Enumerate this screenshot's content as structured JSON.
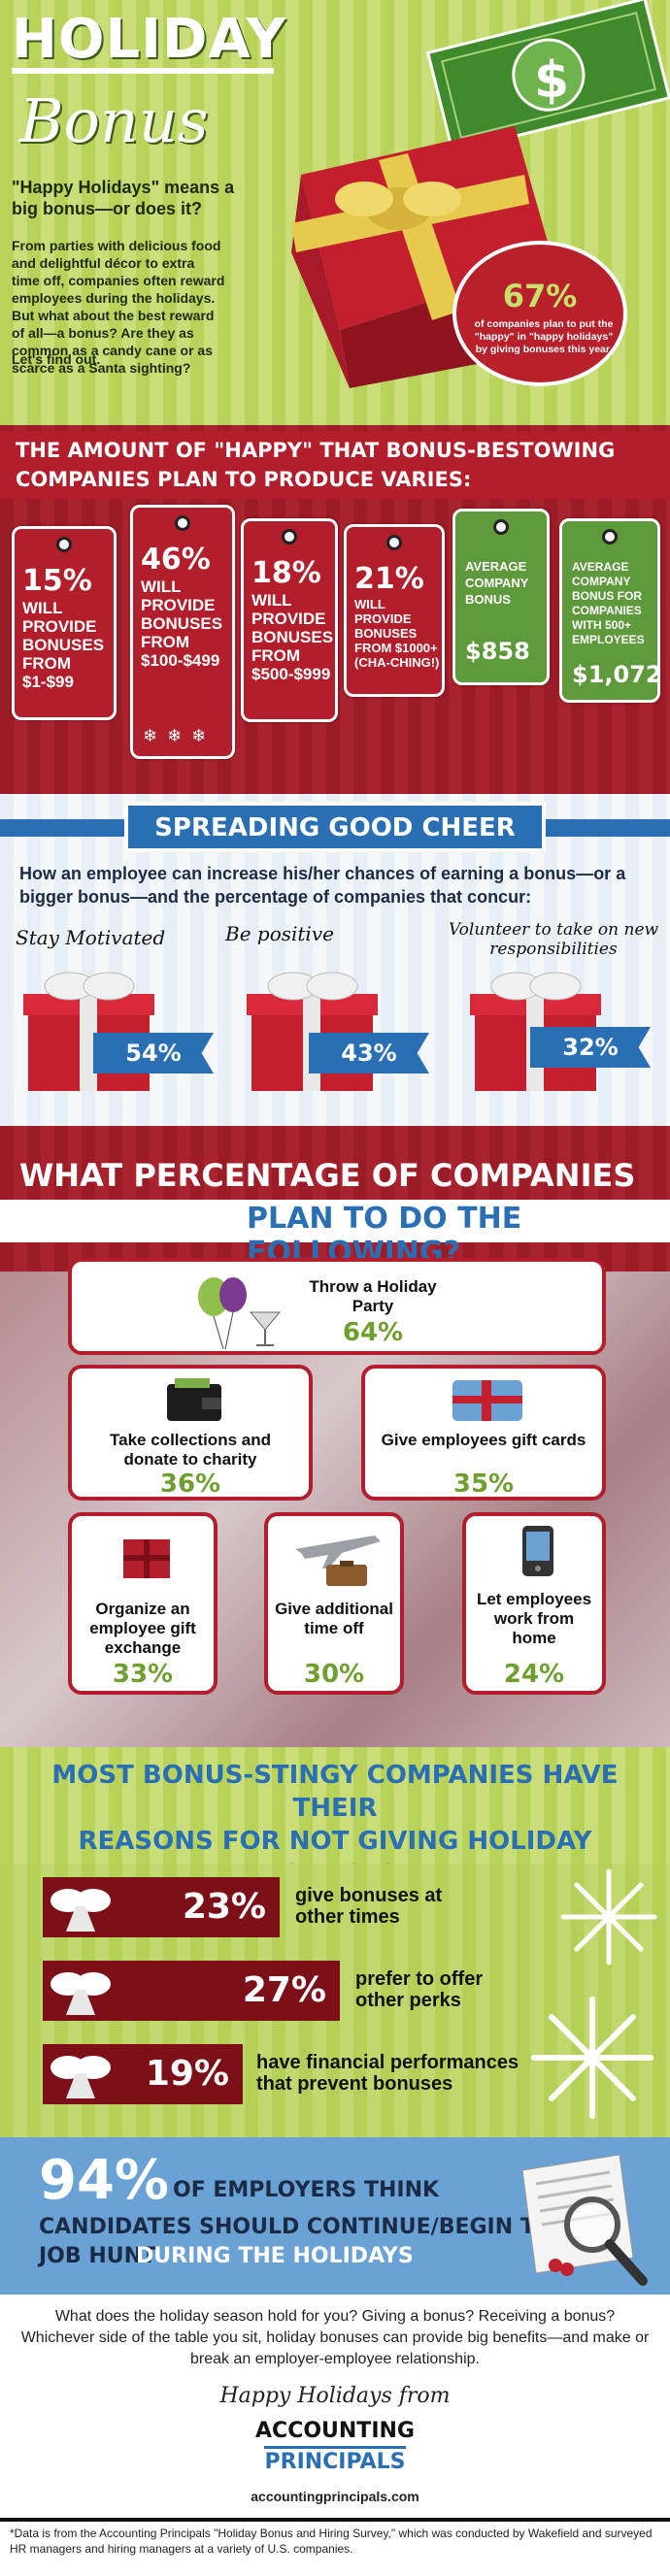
{
  "header": {
    "title_line1": "HOLIDAY",
    "title_line2": "Bonus",
    "question": "\"Happy Holidays\" means a big bonus—or does it?",
    "paragraph": "From parties with delicious food and delightful décor to extra time off, companies often reward employees during the holidays. But what about the best reward of all—a bonus? Are they as common as a candy cane or as scarce as a Santa sighting?",
    "find_out": "Let's find out.",
    "dollar_sign": "$",
    "stat": {
      "value": "67%",
      "text": "of companies plan to put the \"happy\" in \"happy holidays\" by giving bonuses this year."
    }
  },
  "amount": {
    "heading_line1": "THE AMOUNT OF \"HAPPY\" THAT BONUS-BESTOWING",
    "heading_line2": "COMPANIES PLAN TO PRODUCE VARIES:",
    "tags": [
      {
        "pct": "15%",
        "text": "WILL PROVIDE BONUSES FROM $1-$99"
      },
      {
        "pct": "46%",
        "text": "WILL PROVIDE BONUSES FROM $100-$499"
      },
      {
        "pct": "18%",
        "text": "WILL PROVIDE BONUSES FROM $500-$999"
      },
      {
        "pct": "21%",
        "text": "WILL PROVIDE BONUSES FROM $1000+ (CHA-CHING!)"
      }
    ],
    "avg": {
      "label": "AVERAGE COMPANY BONUS",
      "value": "$858"
    },
    "avg500": {
      "label": "AVERAGE COMPANY BONUS FOR COMPANIES WITH 500+ EMPLOYEES",
      "value": "$1,072"
    }
  },
  "cheer": {
    "banner": "SPREADING GOOD CHEER",
    "intro": "How an employee can increase his/her chances of earning a bonus—or a bigger bonus—and the percentage of companies that concur:",
    "items": [
      {
        "label": "Stay Motivated",
        "pct": "54%"
      },
      {
        "label": "Be positive",
        "pct": "43%"
      },
      {
        "label": "Volunteer to take on new responsibilities",
        "pct": "32%"
      }
    ]
  },
  "plans": {
    "heading_line1": "WHAT PERCENTAGE OF COMPANIES",
    "heading_line2": "PLAN TO DO THE FOLLOWING?",
    "party": {
      "text": "Throw a Holiday Party",
      "pct": "64%"
    },
    "charity": {
      "text": "Take collections and donate to charity",
      "pct": "36%"
    },
    "giftcards": {
      "text": "Give employees gift cards",
      "pct": "35%"
    },
    "exchange": {
      "text": "Organize an employee gift exchange",
      "pct": "33%"
    },
    "timeoff": {
      "text": "Give additional time off",
      "pct": "30%"
    },
    "home": {
      "text": "Let employees work from home",
      "pct": "24%"
    }
  },
  "stingy": {
    "line1": "MOST BONUS-STINGY COMPANIES HAVE THEIR",
    "line2": "REASONS FOR NOT GIVING HOLIDAY BONUSES:",
    "reasons": [
      {
        "pct": "23%",
        "text": "give bonuses at other times"
      },
      {
        "pct": "27%",
        "text": "prefer to offer other perks"
      },
      {
        "pct": "19%",
        "text": "have financial performances that prevent bonuses"
      }
    ]
  },
  "job_hunt": {
    "pct": "94%",
    "line_a": "OF EMPLOYERS THINK",
    "line_b": "CANDIDATES SHOULD CONTINUE/BEGIN THEIR",
    "line_c": "JOB HUNT",
    "line_d": "DURING THE HOLIDAYS"
  },
  "closing": {
    "paragraph": "What does the holiday season hold for you? Giving a bonus? Receiving a bonus? Whichever side of the table you sit, holiday bonuses can provide big benefits—and make or break an employer-employee relationship.",
    "happy": "Happy Holidays from",
    "logo_line1": "ACCOUNTING",
    "logo_line2": "PRINCIPALS",
    "url": "accountingprincipals.com",
    "footnote": "*Data is from the Accounting Principals \"Holiday Bonus and Hiring Survey,\" which was conducted by Wakefield and surveyed HR managers and hiring managers at a variety of U.S. companies."
  },
  "colors": {
    "green": "#b9d35a",
    "red": "#b21e2b",
    "dark_red": "#7d0f19",
    "blue": "#2a6fb4",
    "light_blue": "#6aa2d6",
    "stat_green": "#6e9f2f"
  }
}
